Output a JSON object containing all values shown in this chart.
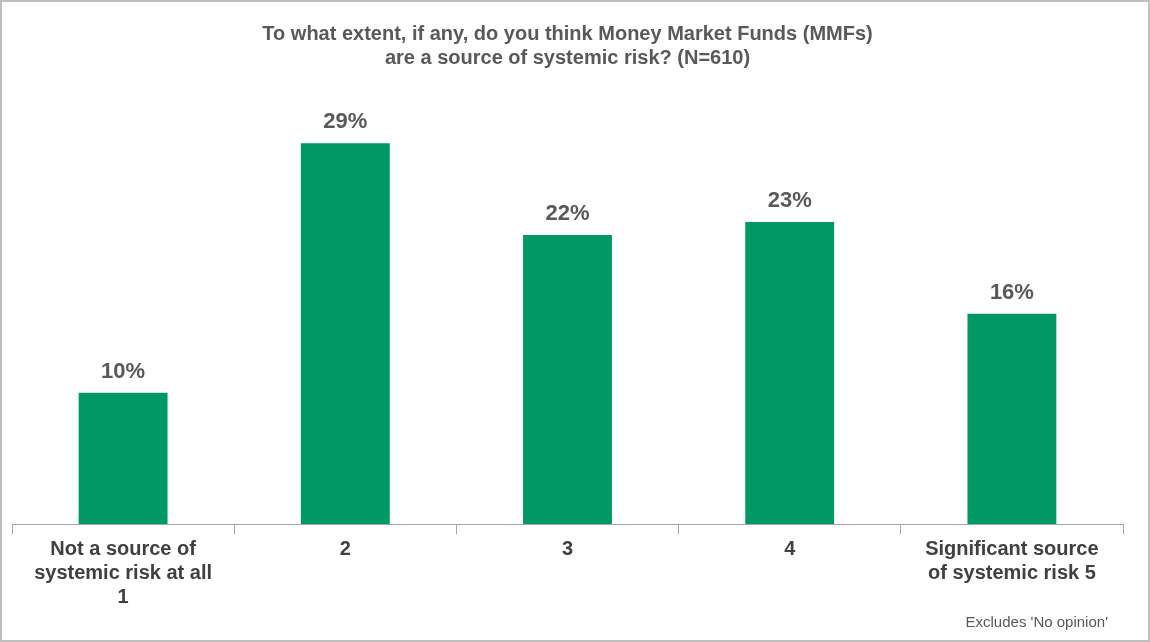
{
  "chart_data": {
    "type": "bar",
    "title": [
      "To what extent, if any, do you think Money Market Funds (MMFs)",
      "are a source of systemic risk? (N=610)"
    ],
    "categories": [
      "Not a source of systemic risk at all 1",
      "2",
      "3",
      "4",
      "Significant source of systemic risk 5"
    ],
    "values": [
      10,
      29,
      22,
      23,
      16
    ],
    "color": "#009966",
    "data_labels": true,
    "value_labels": [
      "10%",
      "29%",
      "22%",
      "23%",
      "16%"
    ],
    "legend": false,
    "grid": false,
    "annotations": [
      "Excludes 'No opinion'"
    ]
  }
}
